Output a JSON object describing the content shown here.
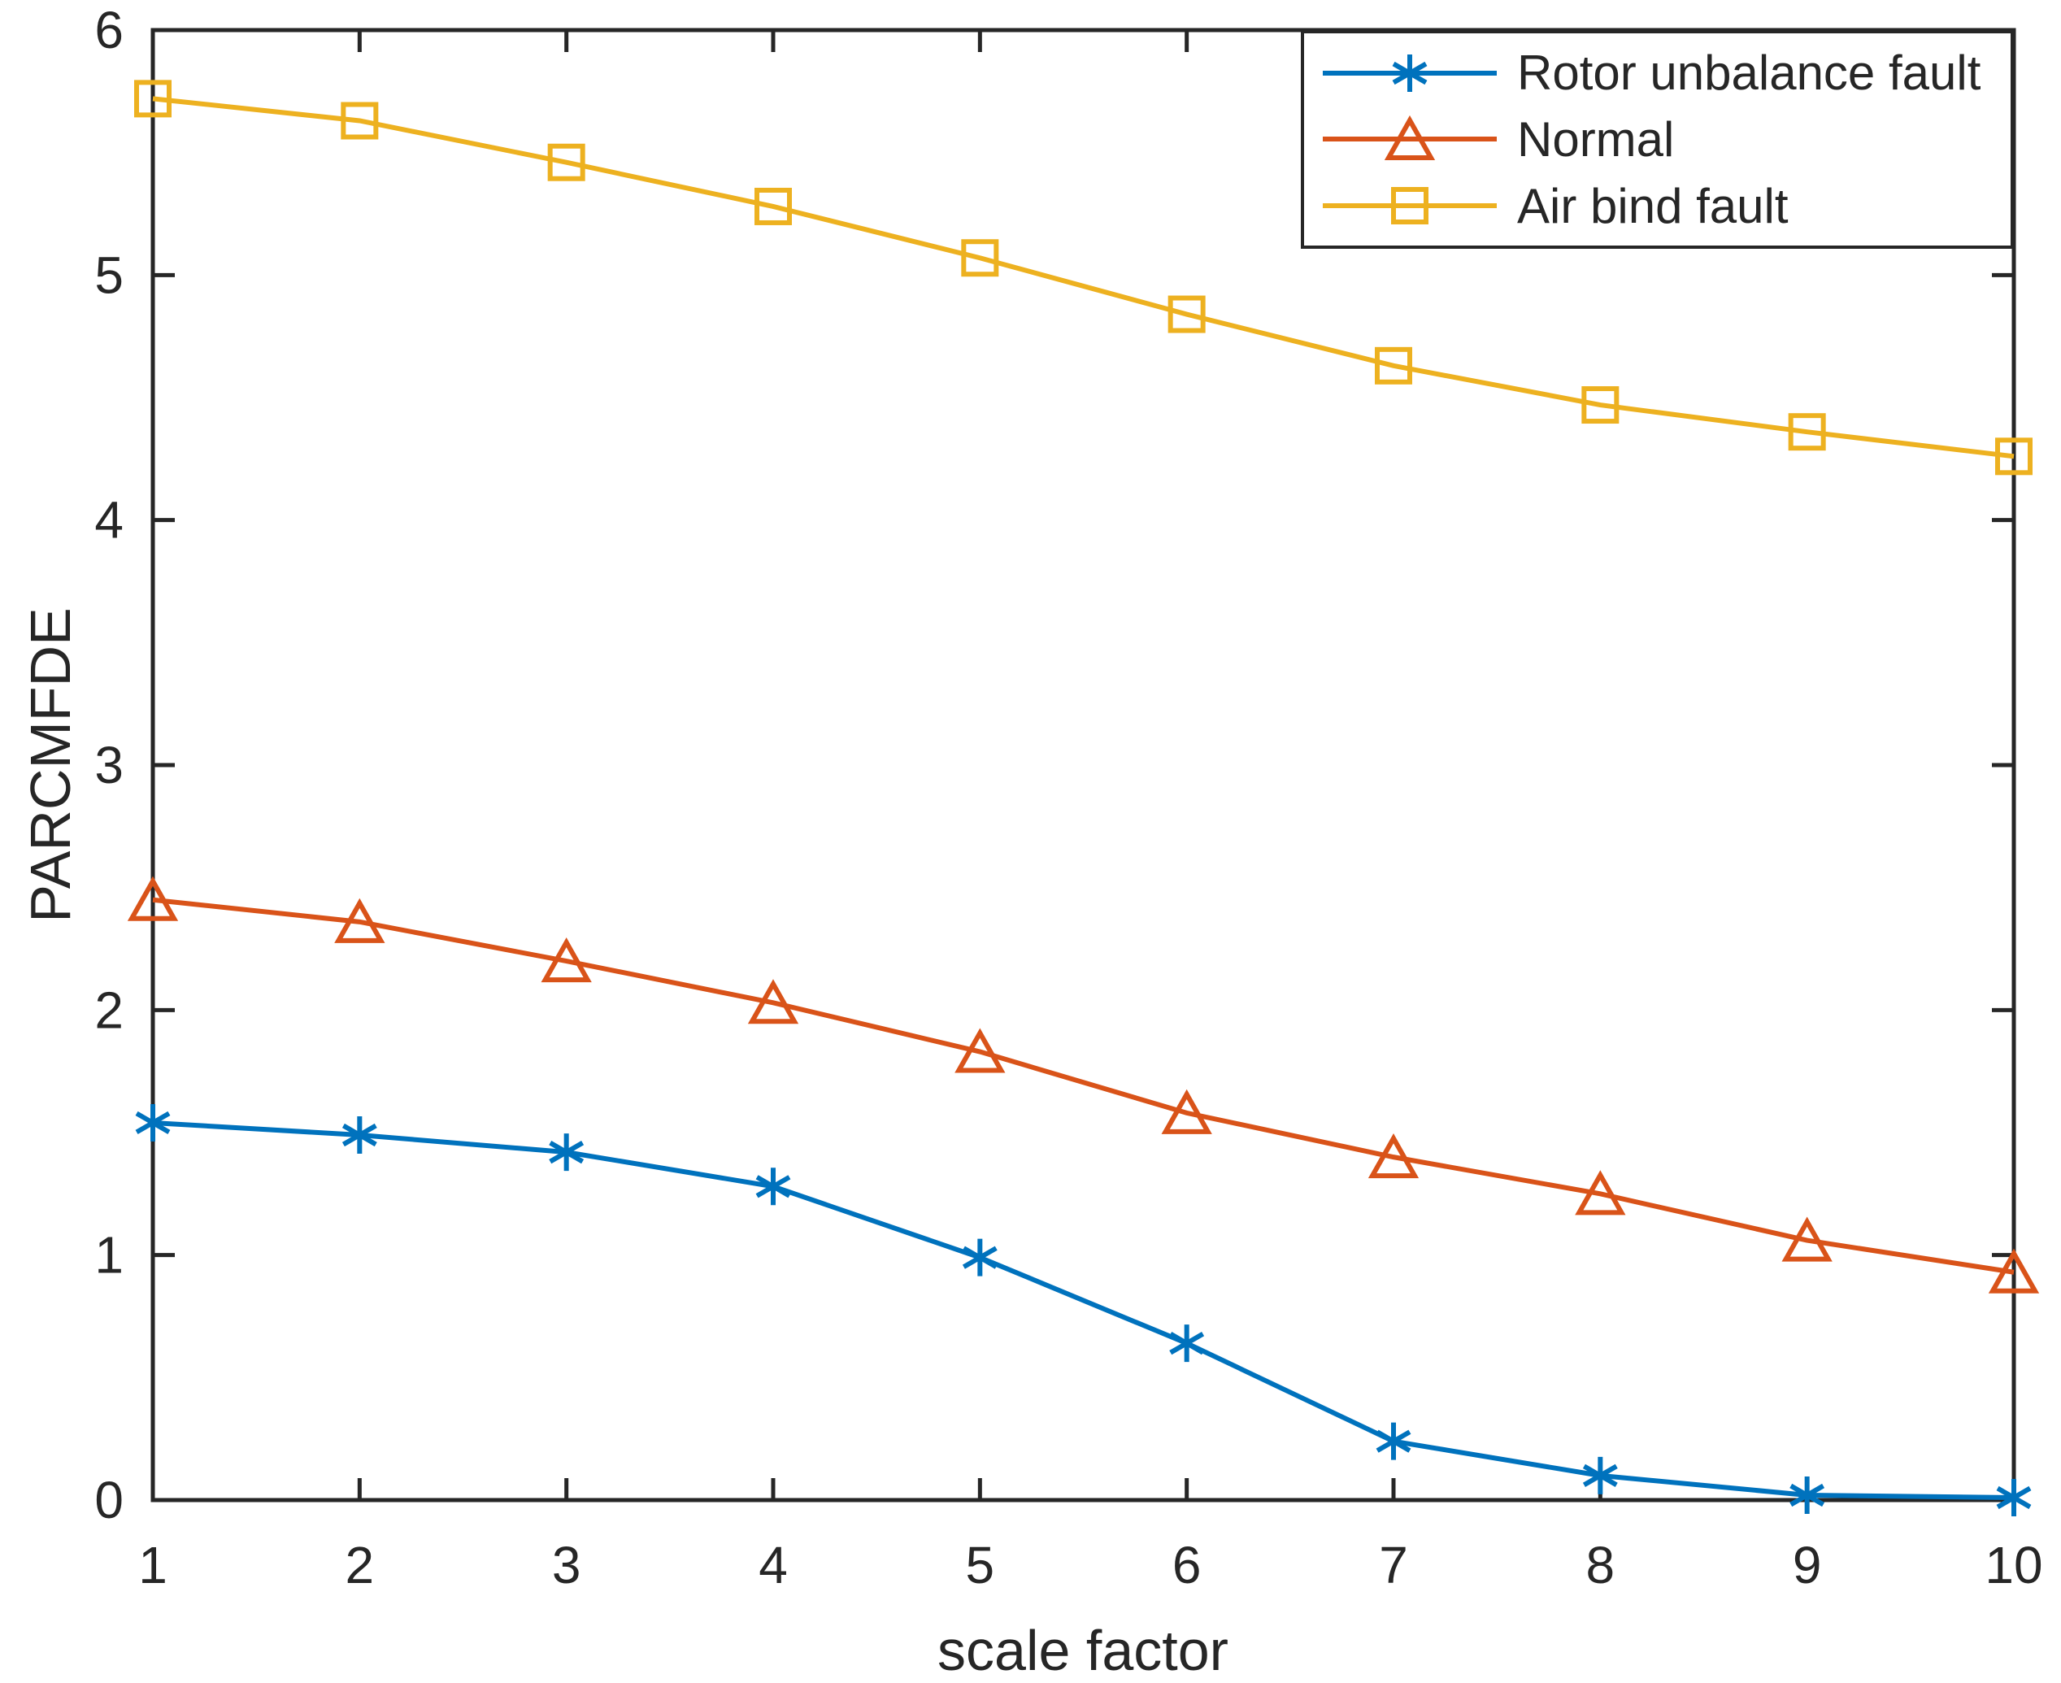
{
  "figure": {
    "background": "#ffffff",
    "axis_color": "#262626"
  },
  "chart_data": {
    "type": "line",
    "title": "",
    "xlabel": "scale factor",
    "ylabel": "PARCMFDE",
    "xlim": [
      1,
      10
    ],
    "ylim": [
      0,
      6
    ],
    "x_ticks": [
      "1",
      "2",
      "3",
      "4",
      "5",
      "6",
      "7",
      "8",
      "9",
      "10"
    ],
    "y_ticks": [
      "0",
      "1",
      "2",
      "3",
      "4",
      "5",
      "6"
    ],
    "grid": false,
    "legend_position": "top-right",
    "x": [
      1,
      2,
      3,
      4,
      5,
      6,
      7,
      8,
      9,
      10
    ],
    "series": [
      {
        "name": "Rotor unbalance fault",
        "color": "#0072BD",
        "marker": "asterisk",
        "values": [
          1.54,
          1.49,
          1.42,
          1.28,
          0.99,
          0.64,
          0.24,
          0.1,
          0.02,
          0.01
        ]
      },
      {
        "name": "Normal",
        "color": "#D95319",
        "marker": "triangle",
        "values": [
          2.45,
          2.36,
          2.2,
          2.03,
          1.83,
          1.58,
          1.4,
          1.25,
          1.06,
          0.93
        ]
      },
      {
        "name": "Air bind fault",
        "color": "#EDB120",
        "marker": "square",
        "values": [
          5.72,
          5.63,
          5.46,
          5.28,
          5.07,
          4.84,
          4.63,
          4.47,
          4.36,
          4.26
        ]
      }
    ]
  },
  "legend": {
    "items": [
      {
        "label": "Rotor unbalance fault"
      },
      {
        "label": "Normal"
      },
      {
        "label": "Air bind fault"
      }
    ]
  }
}
